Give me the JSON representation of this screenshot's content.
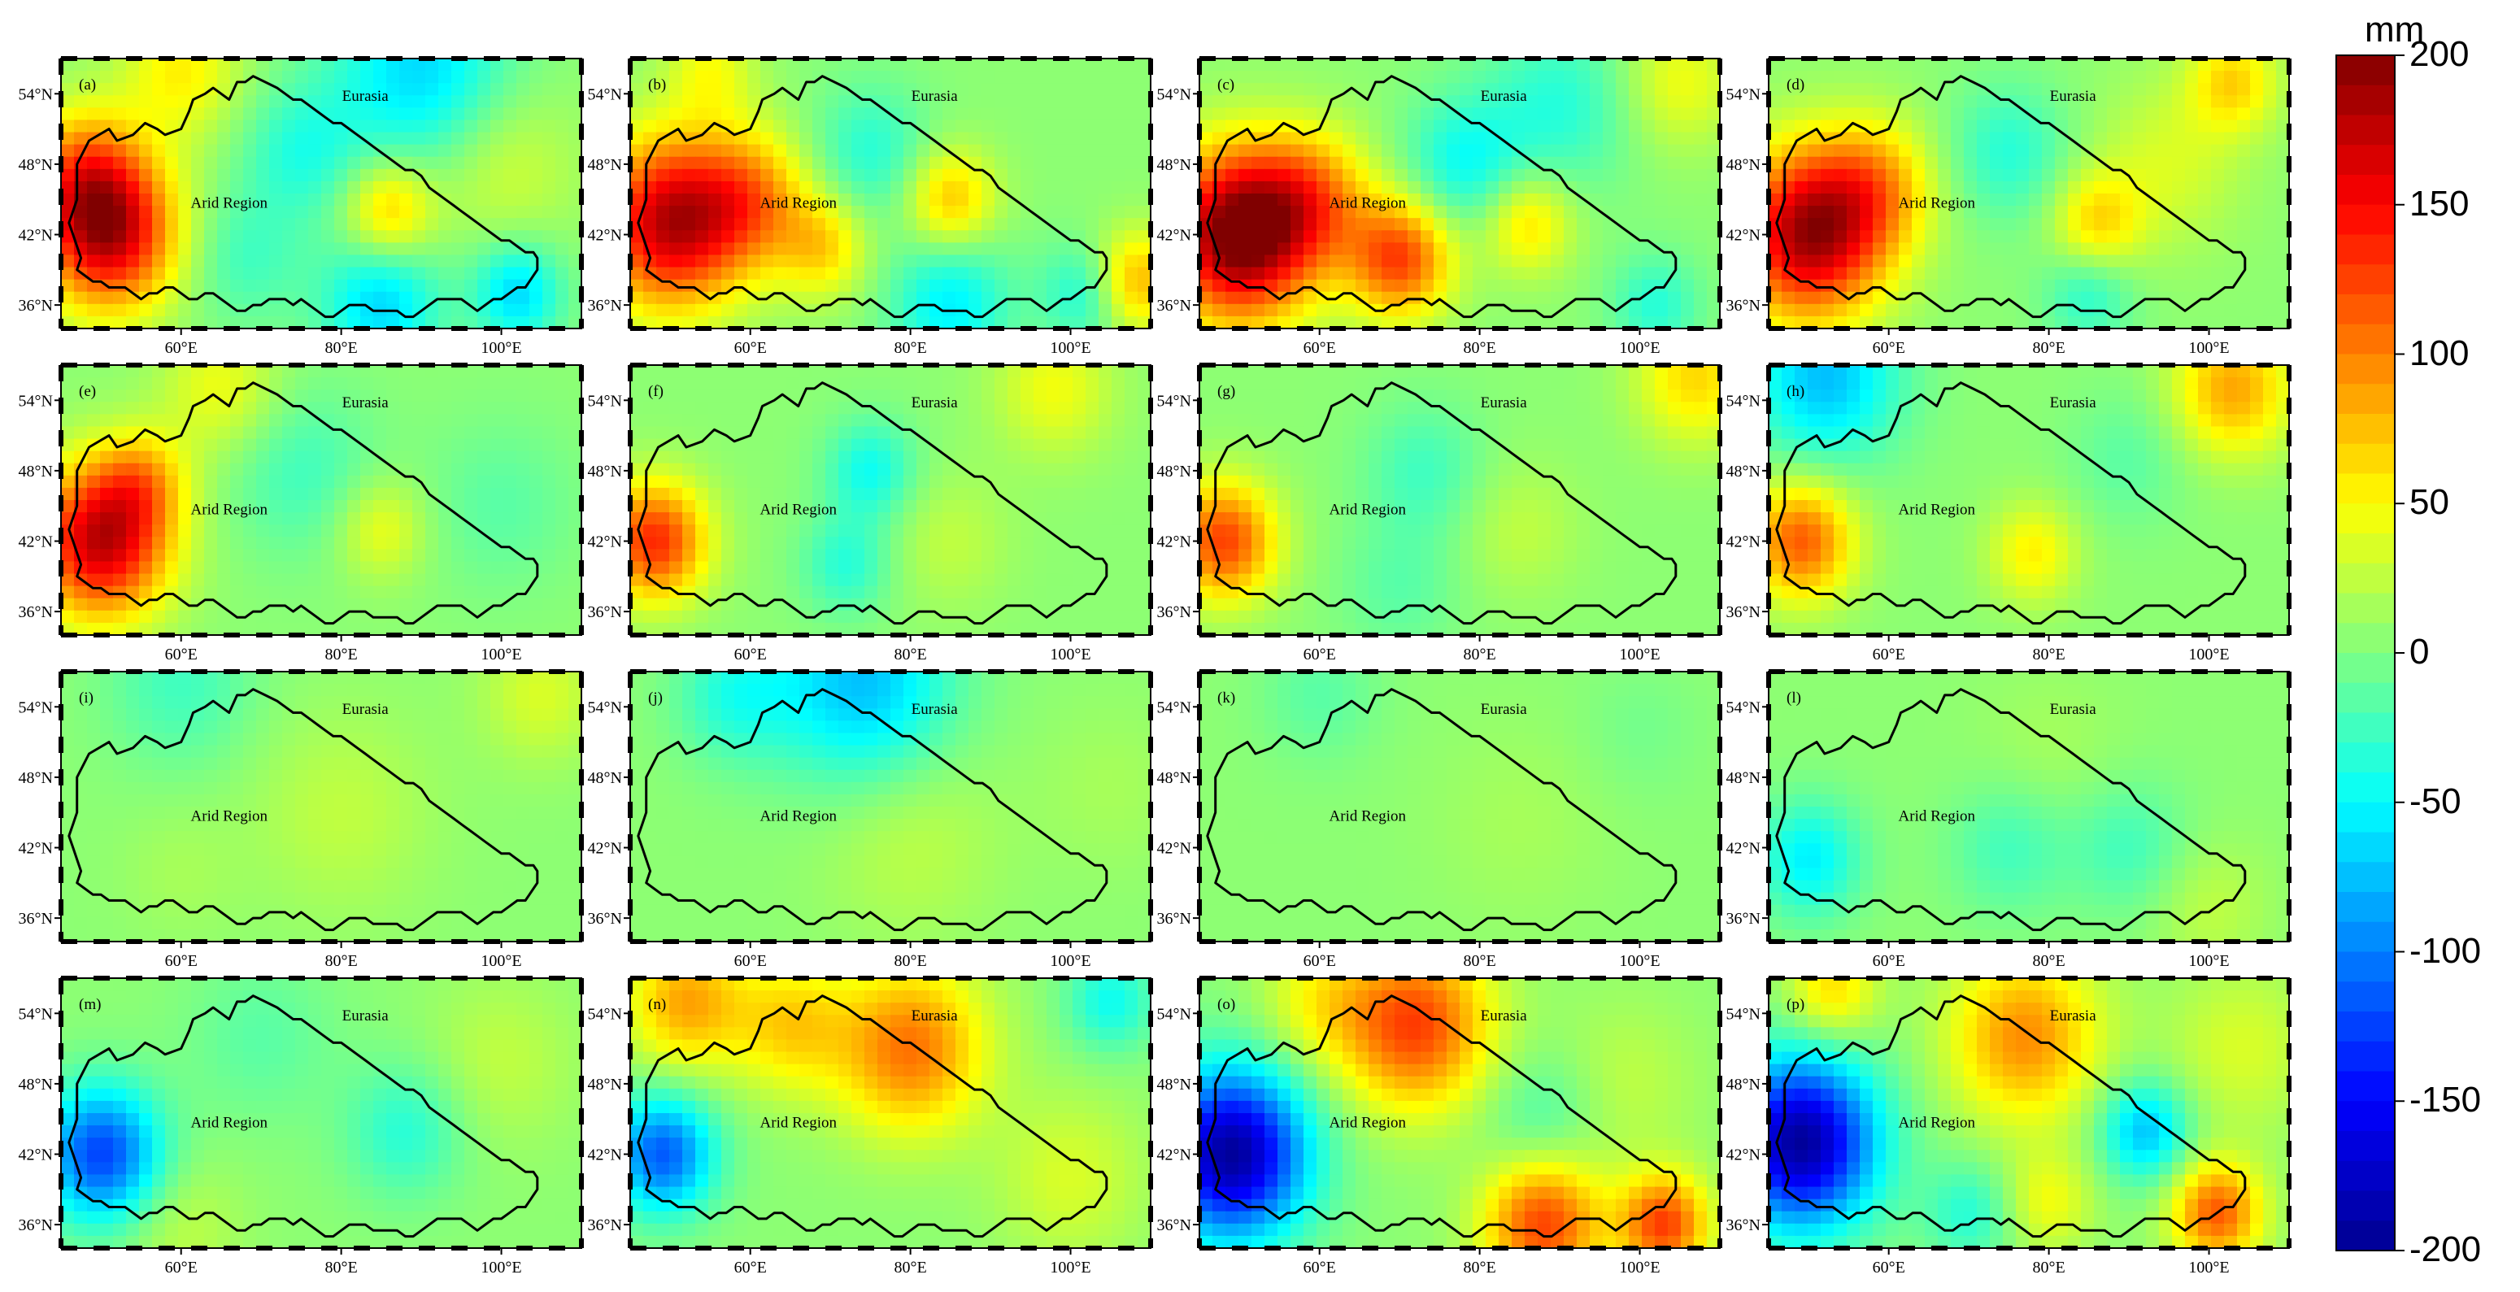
{
  "panel_common": {
    "lat_labels": [
      "54°N",
      "48°N",
      "42°N",
      "36°N"
    ],
    "lat_values": [
      54,
      48,
      42,
      36
    ],
    "lon_labels": [
      "60°E",
      "80°E",
      "100°E"
    ],
    "lon_values": [
      60,
      80,
      100
    ],
    "extent": {
      "lon_min": 45,
      "lon_max": 110,
      "lat_min": 34,
      "lat_max": 57
    },
    "label_eurasia": "Eurasia",
    "label_arid": "Arid Region"
  },
  "panels": [
    {
      "id": "(a)",
      "anomalies": [
        {
          "lon": 51,
          "lat": 42,
          "r": 4.5,
          "v": 160
        },
        {
          "lon": 48,
          "lat": 47,
          "r": 4,
          "v": 90
        },
        {
          "lon": 86,
          "lat": 44,
          "r": 3,
          "v": 70
        },
        {
          "lon": 85,
          "lat": 36,
          "r": 4,
          "v": -70
        },
        {
          "lon": 102,
          "lat": 37,
          "r": 3,
          "v": -70
        },
        {
          "lon": 90,
          "lat": 56,
          "r": 6,
          "v": -70
        },
        {
          "lon": 60,
          "lat": 56,
          "r": 4,
          "v": 50
        },
        {
          "lon": 75,
          "lat": 49,
          "r": 4,
          "v": -40
        },
        {
          "lon": 68,
          "lat": 40,
          "r": 4,
          "v": -30
        },
        {
          "lon": 100,
          "lat": 48,
          "r": 5,
          "v": 30
        }
      ]
    },
    {
      "id": "(b)",
      "anomalies": [
        {
          "lon": 50,
          "lat": 43,
          "r": 5,
          "v": 170
        },
        {
          "lon": 60,
          "lat": 45,
          "r": 4,
          "v": 80
        },
        {
          "lon": 85,
          "lat": 45,
          "r": 3,
          "v": 70
        },
        {
          "lon": 69,
          "lat": 41,
          "r": 3,
          "v": 60
        },
        {
          "lon": 85,
          "lat": 36,
          "r": 4,
          "v": -60
        },
        {
          "lon": 102,
          "lat": 37,
          "r": 3,
          "v": -50
        },
        {
          "lon": 75,
          "lat": 49,
          "r": 4,
          "v": -40
        },
        {
          "lon": 55,
          "lat": 56,
          "r": 3,
          "v": 40
        },
        {
          "lon": 108,
          "lat": 38,
          "r": 3,
          "v": 80
        }
      ]
    },
    {
      "id": "(c)",
      "anomalies": [
        {
          "lon": 50,
          "lat": 42,
          "r": 5,
          "v": 210
        },
        {
          "lon": 70,
          "lat": 40,
          "r": 3.5,
          "v": 120
        },
        {
          "lon": 59,
          "lat": 45,
          "r": 4,
          "v": 80
        },
        {
          "lon": 86,
          "lat": 43,
          "r": 3,
          "v": 60
        },
        {
          "lon": 78,
          "lat": 48,
          "r": 4,
          "v": -50
        },
        {
          "lon": 90,
          "lat": 53,
          "r": 5,
          "v": -40
        },
        {
          "lon": 102,
          "lat": 36,
          "r": 3,
          "v": -40
        },
        {
          "lon": 105,
          "lat": 55,
          "r": 4,
          "v": 40
        }
      ]
    },
    {
      "id": "(d)",
      "anomalies": [
        {
          "lon": 50,
          "lat": 42,
          "r": 5,
          "v": 180
        },
        {
          "lon": 58,
          "lat": 46,
          "r": 4,
          "v": 70
        },
        {
          "lon": 86,
          "lat": 43,
          "r": 3,
          "v": 60
        },
        {
          "lon": 85,
          "lat": 37,
          "r": 3,
          "v": -40
        },
        {
          "lon": 75,
          "lat": 49,
          "r": 4,
          "v": -40
        },
        {
          "lon": 103,
          "lat": 55,
          "r": 3,
          "v": 60
        },
        {
          "lon": 95,
          "lat": 48,
          "r": 5,
          "v": 30
        }
      ]
    },
    {
      "id": "(e)",
      "anomalies": [
        {
          "lon": 50,
          "lat": 42,
          "r": 4.5,
          "v": 170
        },
        {
          "lon": 55,
          "lat": 47,
          "r": 3,
          "v": 60
        },
        {
          "lon": 85,
          "lat": 43,
          "r": 3,
          "v": 40
        },
        {
          "lon": 75,
          "lat": 48,
          "r": 5,
          "v": -30
        },
        {
          "lon": 65,
          "lat": 55,
          "r": 4,
          "v": 40
        },
        {
          "lon": 100,
          "lat": 45,
          "r": 5,
          "v": -20
        }
      ]
    },
    {
      "id": "(f)",
      "anomalies": [
        {
          "lon": 48,
          "lat": 42,
          "r": 3.5,
          "v": 130
        },
        {
          "lon": 75,
          "lat": 48,
          "r": 3,
          "v": -50
        },
        {
          "lon": 72,
          "lat": 40,
          "r": 3,
          "v": -40
        },
        {
          "lon": 98,
          "lat": 55,
          "r": 4,
          "v": 40
        },
        {
          "lon": 85,
          "lat": 42,
          "r": 4,
          "v": 20
        }
      ]
    },
    {
      "id": "(g)",
      "anomalies": [
        {
          "lon": 48,
          "lat": 42,
          "r": 3.5,
          "v": 120
        },
        {
          "lon": 73,
          "lat": 48,
          "r": 4,
          "v": -30
        },
        {
          "lon": 107,
          "lat": 56,
          "r": 4,
          "v": 60
        },
        {
          "lon": 85,
          "lat": 43,
          "r": 4,
          "v": 20
        },
        {
          "lon": 70,
          "lat": 38,
          "r": 4,
          "v": -20
        }
      ]
    },
    {
      "id": "(h)",
      "anomalies": [
        {
          "lon": 49,
          "lat": 42,
          "r": 3.5,
          "v": 110
        },
        {
          "lon": 52,
          "lat": 56,
          "r": 5,
          "v": -80
        },
        {
          "lon": 103,
          "lat": 55,
          "r": 4,
          "v": 80
        },
        {
          "lon": 78,
          "lat": 41,
          "r": 3,
          "v": 50
        },
        {
          "lon": 90,
          "lat": 49,
          "r": 4,
          "v": -20
        }
      ]
    },
    {
      "id": "(i)",
      "anomalies": [
        {
          "lon": 60,
          "lat": 56,
          "r": 5,
          "v": -30
        },
        {
          "lon": 80,
          "lat": 45,
          "r": 6,
          "v": 20
        },
        {
          "lon": 105,
          "lat": 55,
          "r": 4,
          "v": 30
        },
        {
          "lon": 60,
          "lat": 40,
          "r": 4,
          "v": 10
        }
      ]
    },
    {
      "id": "(j)",
      "anomalies": [
        {
          "lon": 74,
          "lat": 56,
          "r": 6,
          "v": -80
        },
        {
          "lon": 58,
          "lat": 55,
          "r": 4,
          "v": -40
        },
        {
          "lon": 80,
          "lat": 43,
          "r": 6,
          "v": 20
        },
        {
          "lon": 105,
          "lat": 47,
          "r": 5,
          "v": 10
        }
      ]
    },
    {
      "id": "(k)",
      "anomalies": [
        {
          "lon": 60,
          "lat": 55,
          "r": 4,
          "v": -20
        },
        {
          "lon": 85,
          "lat": 44,
          "r": 6,
          "v": 10
        },
        {
          "lon": 100,
          "lat": 52,
          "r": 4,
          "v": -10
        }
      ]
    },
    {
      "id": "(l)",
      "anomalies": [
        {
          "lon": 50,
          "lat": 41,
          "r": 3.5,
          "v": -60
        },
        {
          "lon": 75,
          "lat": 42,
          "r": 4,
          "v": -30
        },
        {
          "lon": 90,
          "lat": 42,
          "r": 4,
          "v": -30
        },
        {
          "lon": 80,
          "lat": 50,
          "r": 5,
          "v": 10
        },
        {
          "lon": 100,
          "lat": 37,
          "r": 4,
          "v": 20
        }
      ]
    },
    {
      "id": "(m)",
      "anomalies": [
        {
          "lon": 50,
          "lat": 42,
          "r": 4,
          "v": -130
        },
        {
          "lon": 70,
          "lat": 52,
          "r": 5,
          "v": -20
        },
        {
          "lon": 88,
          "lat": 44,
          "r": 4,
          "v": -40
        },
        {
          "lon": 60,
          "lat": 36,
          "r": 4,
          "v": 20
        },
        {
          "lon": 100,
          "lat": 50,
          "r": 5,
          "v": 20
        }
      ]
    },
    {
      "id": "(n)",
      "anomalies": [
        {
          "lon": 49,
          "lat": 42,
          "r": 3.5,
          "v": -120
        },
        {
          "lon": 80,
          "lat": 51,
          "r": 5,
          "v": 100
        },
        {
          "lon": 52,
          "lat": 55,
          "r": 4,
          "v": 80
        },
        {
          "lon": 65,
          "lat": 53,
          "r": 4,
          "v": 60
        },
        {
          "lon": 105,
          "lat": 55,
          "r": 3,
          "v": -50
        },
        {
          "lon": 100,
          "lat": 40,
          "r": 5,
          "v": 30
        }
      ]
    },
    {
      "id": "(o)",
      "anomalies": [
        {
          "lon": 49,
          "lat": 42,
          "r": 5,
          "v": -200
        },
        {
          "lon": 72,
          "lat": 53,
          "r": 5,
          "v": 120
        },
        {
          "lon": 88,
          "lat": 36,
          "r": 4,
          "v": 120
        },
        {
          "lon": 103,
          "lat": 36,
          "r": 3,
          "v": 120
        },
        {
          "lon": 60,
          "lat": 55,
          "r": 4,
          "v": 40
        },
        {
          "lon": 88,
          "lat": 45,
          "r": 4,
          "v": -30
        },
        {
          "lon": 98,
          "lat": 48,
          "r": 5,
          "v": 20
        }
      ]
    },
    {
      "id": "(p)",
      "anomalies": [
        {
          "lon": 49,
          "lat": 43,
          "r": 5,
          "v": -200
        },
        {
          "lon": 77,
          "lat": 52,
          "r": 5,
          "v": 90
        },
        {
          "lon": 92,
          "lat": 44,
          "r": 3,
          "v": -80
        },
        {
          "lon": 101,
          "lat": 37,
          "r": 3,
          "v": 110
        },
        {
          "lon": 80,
          "lat": 38,
          "r": 3,
          "v": 40
        },
        {
          "lon": 70,
          "lat": 37,
          "r": 3,
          "v": -40
        },
        {
          "lon": 53,
          "lat": 56,
          "r": 3,
          "v": 60
        },
        {
          "lon": 104,
          "lat": 51,
          "r": 5,
          "v": 30
        }
      ]
    }
  ],
  "boundary": [
    [
      47,
      48
    ],
    [
      48.5,
      50
    ],
    [
      51,
      51
    ],
    [
      52,
      50
    ],
    [
      54,
      50.5
    ],
    [
      55.5,
      51.5
    ],
    [
      57,
      51
    ],
    [
      58,
      50.5
    ],
    [
      60,
      51
    ],
    [
      61,
      52.5
    ],
    [
      61.5,
      53.5
    ],
    [
      63,
      54
    ],
    [
      64,
      54.5
    ],
    [
      66,
      53.5
    ],
    [
      67,
      55
    ],
    [
      68,
      55
    ],
    [
      69,
      55.5
    ],
    [
      70.5,
      55
    ],
    [
      72,
      54.5
    ],
    [
      73,
      54
    ],
    [
      74,
      53.5
    ],
    [
      75,
      53.5
    ],
    [
      76,
      53
    ],
    [
      77,
      52.5
    ],
    [
      78,
      52
    ],
    [
      79,
      51.5
    ],
    [
      80,
      51.5
    ],
    [
      81,
      51
    ],
    [
      82,
      50.5
    ],
    [
      83,
      50
    ],
    [
      84,
      49.5
    ],
    [
      85,
      49
    ],
    [
      86,
      48.5
    ],
    [
      87,
      48
    ],
    [
      88,
      47.5
    ],
    [
      89,
      47.5
    ],
    [
      90,
      47
    ],
    [
      91,
      46
    ],
    [
      92,
      45.5
    ],
    [
      93,
      45
    ],
    [
      94,
      44.5
    ],
    [
      95,
      44
    ],
    [
      96,
      43.5
    ],
    [
      97,
      43
    ],
    [
      98,
      42.5
    ],
    [
      99,
      42
    ],
    [
      100,
      41.5
    ],
    [
      101,
      41.5
    ],
    [
      102,
      41
    ],
    [
      103,
      40.5
    ],
    [
      104,
      40.5
    ],
    [
      104.5,
      40
    ],
    [
      104.5,
      39
    ],
    [
      104,
      38.5
    ],
    [
      103.5,
      38
    ],
    [
      103,
      37.5
    ],
    [
      102,
      37.5
    ],
    [
      101,
      37
    ],
    [
      100,
      36.5
    ],
    [
      99,
      36.5
    ],
    [
      98,
      36
    ],
    [
      97,
      35.5
    ],
    [
      96,
      36
    ],
    [
      95,
      36.5
    ],
    [
      94,
      36.5
    ],
    [
      93,
      36.5
    ],
    [
      92,
      36.5
    ],
    [
      91,
      36
    ],
    [
      90,
      35.5
    ],
    [
      89,
      35
    ],
    [
      88,
      35
    ],
    [
      87,
      35.5
    ],
    [
      86,
      35.5
    ],
    [
      85,
      35.5
    ],
    [
      84,
      35.5
    ],
    [
      83,
      36
    ],
    [
      82,
      36
    ],
    [
      81,
      36
    ],
    [
      80,
      35.5
    ],
    [
      79,
      35
    ],
    [
      78,
      35
    ],
    [
      77,
      35.5
    ],
    [
      76,
      36
    ],
    [
      75,
      36.5
    ],
    [
      74,
      36
    ],
    [
      73,
      36.5
    ],
    [
      72,
      36.5
    ],
    [
      71,
      36.5
    ],
    [
      70,
      36
    ],
    [
      69,
      36
    ],
    [
      68,
      35.5
    ],
    [
      67,
      35.5
    ],
    [
      66,
      36
    ],
    [
      65,
      36.5
    ],
    [
      64,
      37
    ],
    [
      63,
      37
    ],
    [
      62,
      36.5
    ],
    [
      61,
      36.5
    ],
    [
      60,
      37
    ],
    [
      59,
      37.5
    ],
    [
      58,
      37.5
    ],
    [
      57,
      37
    ],
    [
      56,
      37
    ],
    [
      55,
      36.5
    ],
    [
      54,
      37
    ],
    [
      53,
      37.5
    ],
    [
      52,
      37.5
    ],
    [
      51,
      37.5
    ],
    [
      50,
      38
    ],
    [
      49,
      38
    ],
    [
      48,
      38.5
    ],
    [
      47,
      39
    ],
    [
      47.5,
      40
    ],
    [
      47,
      41
    ],
    [
      46.5,
      42
    ],
    [
      46,
      43
    ],
    [
      46.5,
      44
    ],
    [
      47,
      45
    ],
    [
      47,
      46
    ],
    [
      47,
      47
    ],
    [
      47,
      48
    ]
  ],
  "colorbar": {
    "unit": "mm",
    "min": -200,
    "max": 200,
    "ticks": [
      200,
      150,
      100,
      50,
      0,
      -50,
      -100,
      -150,
      -200
    ],
    "tick_labels": [
      "200",
      "150",
      "100",
      "50",
      "0",
      "-50",
      "-100",
      "-150",
      "-200"
    ],
    "colors": [
      "#00008f",
      "#0000ff",
      "#0080ff",
      "#00ffff",
      "#80ff80",
      "#ffff00",
      "#ff8000",
      "#ff0000",
      "#800000"
    ]
  }
}
